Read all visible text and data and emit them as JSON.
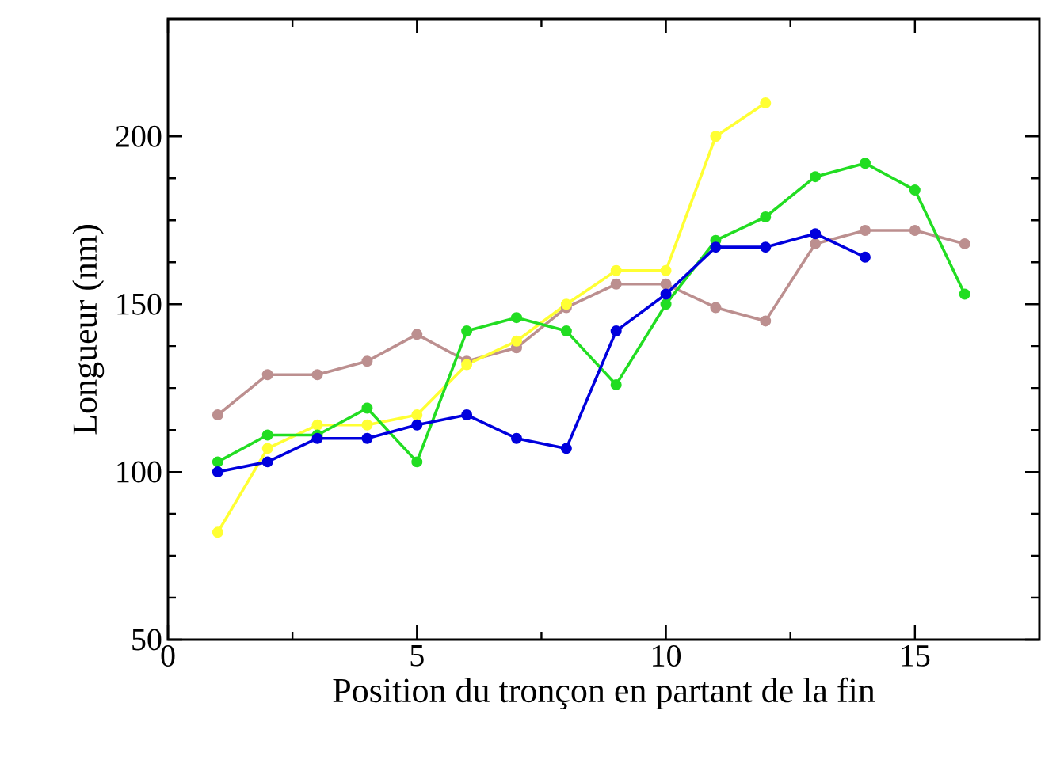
{
  "chart_data": {
    "type": "line",
    "xlabel": "Position du tronçon en partant de la fin",
    "ylabel": "Longueur (nm)",
    "xlim": [
      0,
      17.5
    ],
    "xticks": [
      0,
      5,
      10,
      15
    ],
    "ylim": [
      50,
      235
    ],
    "yticks": [
      50,
      100,
      150,
      200
    ],
    "grid": false,
    "legend": false,
    "marker": "circle",
    "line_style": "solid",
    "series": [
      {
        "color": "#bc8f8f",
        "x": [
          1,
          2,
          3,
          4,
          5,
          6,
          7,
          8,
          9,
          10,
          11,
          12,
          13,
          14,
          15,
          16
        ],
        "values": [
          117,
          129,
          129,
          133,
          141,
          133,
          137,
          149,
          156,
          156,
          149,
          145,
          168,
          172,
          172,
          168
        ]
      },
      {
        "color": "#ffff33",
        "x": [
          1,
          2,
          3,
          4,
          5,
          6,
          7,
          8,
          9,
          10,
          11,
          12
        ],
        "values": [
          82,
          107,
          114,
          114,
          117,
          132,
          139,
          150,
          160,
          160,
          200,
          210
        ]
      },
      {
        "color": "#22dd22",
        "x": [
          1,
          2,
          3,
          4,
          5,
          6,
          7,
          8,
          9,
          10,
          11,
          12,
          13,
          14,
          15,
          16
        ],
        "values": [
          103,
          111,
          111,
          119,
          103,
          142,
          146,
          142,
          126,
          150,
          169,
          176,
          188,
          192,
          184,
          153
        ]
      },
      {
        "color": "#0000dd",
        "x": [
          1,
          2,
          3,
          4,
          5,
          6,
          7,
          8,
          9,
          10,
          11,
          12,
          13,
          14
        ],
        "values": [
          100,
          103,
          110,
          110,
          114,
          117,
          110,
          107,
          142,
          153,
          167,
          167,
          171,
          164
        ]
      }
    ]
  }
}
